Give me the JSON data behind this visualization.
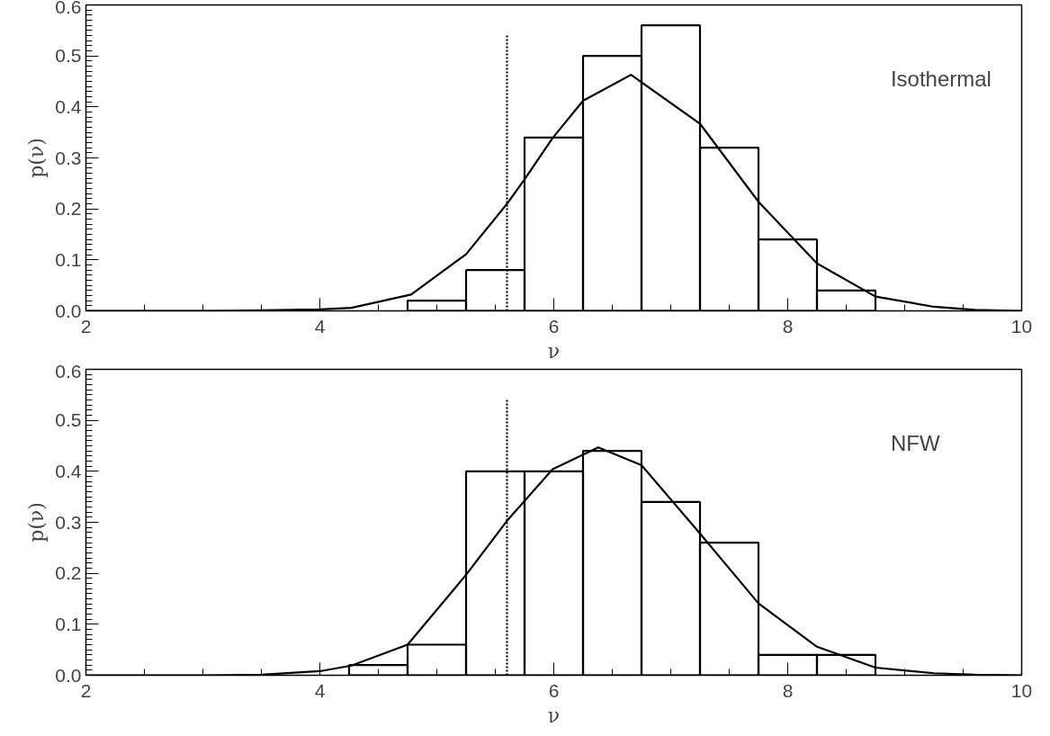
{
  "chart_data": [
    {
      "type": "histogram",
      "bins": [
        4.75,
        5.25,
        5.75,
        6.25,
        6.75,
        7.25,
        7.75,
        8.25,
        8.75
      ],
      "values": [
        0.02,
        0.08,
        0.34,
        0.5,
        0.56,
        0.32,
        0.14,
        0.04
      ],
      "color": "#000000",
      "series": [
        {
          "type": "line",
          "color": "#000000",
          "x": [
            2,
            3,
            3.5,
            4,
            4.27,
            4.78,
            5.25,
            5.6,
            5.75,
            5.99,
            6.25,
            6.66,
            7.25,
            7.75,
            8.25,
            8.75,
            9.25,
            9.6,
            10
          ],
          "values": [
            0,
            0,
            0.001,
            0.003,
            0.006,
            0.032,
            0.111,
            0.21,
            0.258,
            0.339,
            0.412,
            0.463,
            0.367,
            0.214,
            0.093,
            0.028,
            0.008,
            0.002,
            0
          ]
        },
        {
          "type": "line",
          "color": "#000000",
          "line_style": "dotted",
          "x": [
            5.6,
            5.6
          ],
          "values": [
            0,
            0.54
          ]
        }
      ],
      "xlabel": "ν",
      "ylabel": "p(ν)",
      "annotations": [
        "Isothermal"
      ],
      "xlim": [
        2,
        10
      ],
      "ylim": [
        0,
        0.6
      ],
      "xticks": [
        2,
        4,
        6,
        8,
        10
      ],
      "yticks": [
        {
          "value": 0,
          "label": "0.0"
        },
        0.1,
        0.2,
        0.3,
        0.4,
        0.5,
        0.6
      ],
      "grid": false
    },
    {
      "type": "histogram",
      "bins": [
        4.25,
        4.75,
        5.25,
        5.75,
        6.25,
        6.75,
        7.25,
        7.75,
        8.25,
        8.75
      ],
      "values": [
        0.02,
        0.06,
        0.4,
        0.4,
        0.44,
        0.34,
        0.26,
        0.04,
        0.04
      ],
      "color": "#000000",
      "series": [
        {
          "type": "line",
          "color": "#000000",
          "x": [
            2,
            3,
            3.5,
            4,
            4.27,
            4.75,
            5.25,
            5.6,
            5.99,
            6.38,
            6.75,
            7.25,
            7.75,
            8.25,
            8.75,
            9.25,
            9.6,
            10
          ],
          "values": [
            0,
            0,
            0.001,
            0.008,
            0.019,
            0.06,
            0.197,
            0.303,
            0.404,
            0.447,
            0.412,
            0.278,
            0.141,
            0.056,
            0.015,
            0.004,
            0.001,
            0
          ]
        },
        {
          "type": "line",
          "color": "#000000",
          "line_style": "dotted",
          "x": [
            5.6,
            5.6
          ],
          "values": [
            0,
            0.54
          ]
        }
      ],
      "xlabel": "ν",
      "ylabel": "p(ν)",
      "annotations": [
        "NFW"
      ],
      "xlim": [
        2,
        10
      ],
      "ylim": [
        0,
        0.6
      ],
      "xticks": [
        2,
        4,
        6,
        8,
        10
      ],
      "yticks": [
        {
          "value": 0,
          "label": "0.0"
        },
        0.1,
        0.2,
        0.3,
        0.4,
        0.5,
        0.6
      ],
      "grid": false
    }
  ]
}
